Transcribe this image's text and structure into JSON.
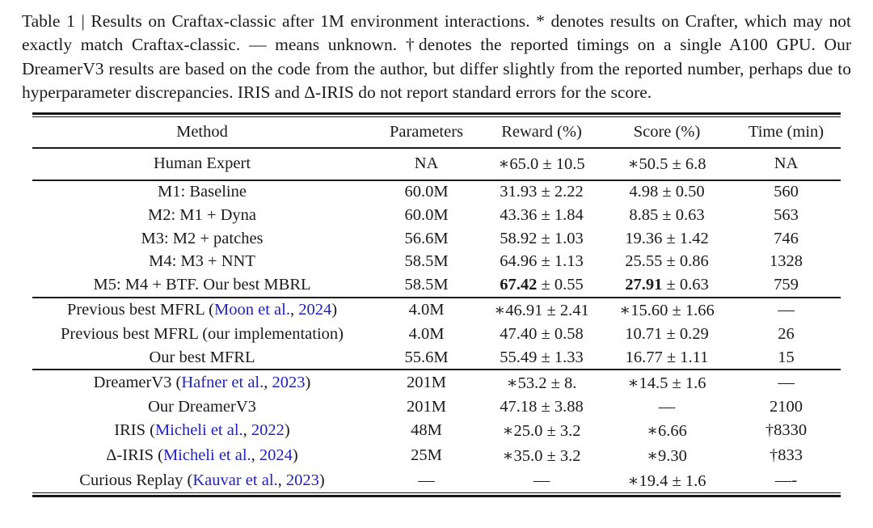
{
  "caption": {
    "label": "Table 1",
    "text": "Table 1 | Results on Craftax-classic after 1M environment interactions. * denotes results on Crafter, which may not exactly match Craftax-classic. — means unknown. †denotes the reported timings on a single A100 GPU. Our DreamerV3 results are based on the code from the author, but differ slightly from the reported number, perhaps due to hyperparameter discrepancies. IRIS and Δ-IRIS do not report standard errors for the score."
  },
  "colors": {
    "text": "#1b1b1b",
    "citation_link": "#2222bd",
    "rule": "#161616",
    "background": "#ffffff"
  },
  "table": {
    "headers": [
      "Method",
      "Parameters",
      "Reward (%)",
      "Score (%)",
      "Time (min)"
    ],
    "column_keys": [
      "method",
      "parameters",
      "reward",
      "score",
      "time"
    ],
    "sections": [
      {
        "name": "human-expert",
        "rows": [
          {
            "cells": [
              [
                {
                  "t": "Human Expert"
                }
              ],
              [
                {
                  "t": "NA"
                }
              ],
              [
                {
                  "t": "∗65.0 ± 10.5"
                }
              ],
              [
                {
                  "t": "∗50.5 ± 6.8"
                }
              ],
              [
                {
                  "t": "NA"
                }
              ]
            ]
          }
        ]
      },
      {
        "name": "our-mbrl",
        "rows": [
          {
            "cells": [
              [
                {
                  "t": "M1: Baseline"
                }
              ],
              [
                {
                  "t": "60.0M"
                }
              ],
              [
                {
                  "t": "31.93 ± 2.22"
                }
              ],
              [
                {
                  "t": "4.98 ± 0.50"
                }
              ],
              [
                {
                  "t": "560"
                }
              ]
            ]
          },
          {
            "cells": [
              [
                {
                  "t": "M2: M1 + Dyna"
                }
              ],
              [
                {
                  "t": "60.0M"
                }
              ],
              [
                {
                  "t": "43.36 ± 1.84"
                }
              ],
              [
                {
                  "t": "8.85 ± 0.63"
                }
              ],
              [
                {
                  "t": "563"
                }
              ]
            ]
          },
          {
            "cells": [
              [
                {
                  "t": "M3: M2 + patches"
                }
              ],
              [
                {
                  "t": "56.6M"
                }
              ],
              [
                {
                  "t": "58.92 ± 1.03"
                }
              ],
              [
                {
                  "t": "19.36 ± 1.42"
                }
              ],
              [
                {
                  "t": "746"
                }
              ]
            ]
          },
          {
            "cells": [
              [
                {
                  "t": "M4: M3 + NNT"
                }
              ],
              [
                {
                  "t": "58.5M"
                }
              ],
              [
                {
                  "t": "64.96 ± 1.13"
                }
              ],
              [
                {
                  "t": "25.55 ± 0.86"
                }
              ],
              [
                {
                  "t": "1328"
                }
              ]
            ]
          },
          {
            "cells": [
              [
                {
                  "t": "M5: M4 + BTF. Our best MBRL"
                }
              ],
              [
                {
                  "t": "58.5M"
                }
              ],
              [
                {
                  "t": "67.42",
                  "c": "bold"
                },
                {
                  "t": " ± 0.55"
                }
              ],
              [
                {
                  "t": "27.91",
                  "c": "bold"
                },
                {
                  "t": " ± 0.63"
                }
              ],
              [
                {
                  "t": "759"
                }
              ]
            ]
          }
        ]
      },
      {
        "name": "mfrl",
        "rows": [
          {
            "cells": [
              [
                {
                  "t": "Previous best MFRL ("
                },
                {
                  "t": "Moon et al.",
                  "c": "cite"
                },
                {
                  "t": ", "
                },
                {
                  "t": "2024",
                  "c": "cite"
                },
                {
                  "t": ")"
                }
              ],
              [
                {
                  "t": "4.0M"
                }
              ],
              [
                {
                  "t": "∗46.91 ± 2.41"
                }
              ],
              [
                {
                  "t": "∗15.60 ± 1.66"
                }
              ],
              [
                {
                  "t": "—"
                }
              ]
            ]
          },
          {
            "cells": [
              [
                {
                  "t": "Previous best MFRL (our implementation)"
                }
              ],
              [
                {
                  "t": "4.0M"
                }
              ],
              [
                {
                  "t": "47.40 ± 0.58"
                }
              ],
              [
                {
                  "t": "10.71 ± 0.29"
                }
              ],
              [
                {
                  "t": "26"
                }
              ]
            ]
          },
          {
            "cells": [
              [
                {
                  "t": "Our best MFRL"
                }
              ],
              [
                {
                  "t": "55.6M"
                }
              ],
              [
                {
                  "t": "55.49 ± 1.33"
                }
              ],
              [
                {
                  "t": "16.77 ± 1.11"
                }
              ],
              [
                {
                  "t": "15"
                }
              ]
            ]
          }
        ]
      },
      {
        "name": "baselines",
        "rows": [
          {
            "cells": [
              [
                {
                  "t": "DreamerV3 ("
                },
                {
                  "t": "Hafner et al.",
                  "c": "cite"
                },
                {
                  "t": ", "
                },
                {
                  "t": "2023",
                  "c": "cite"
                },
                {
                  "t": ")"
                }
              ],
              [
                {
                  "t": "201M"
                }
              ],
              [
                {
                  "t": "∗53.2 ± 8."
                }
              ],
              [
                {
                  "t": "∗14.5 ± 1.6"
                }
              ],
              [
                {
                  "t": "—"
                }
              ]
            ]
          },
          {
            "cells": [
              [
                {
                  "t": "Our DreamerV3"
                }
              ],
              [
                {
                  "t": "201M"
                }
              ],
              [
                {
                  "t": "47.18 ± 3.88"
                }
              ],
              [
                {
                  "t": "—"
                }
              ],
              [
                {
                  "t": "2100"
                }
              ]
            ]
          },
          {
            "cells": [
              [
                {
                  "t": "IRIS ("
                },
                {
                  "t": "Micheli et al.",
                  "c": "cite"
                },
                {
                  "t": ", "
                },
                {
                  "t": "2022",
                  "c": "cite"
                },
                {
                  "t": ")"
                }
              ],
              [
                {
                  "t": "48M"
                }
              ],
              [
                {
                  "t": "∗25.0 ± 3.2"
                }
              ],
              [
                {
                  "t": "∗6.66"
                }
              ],
              [
                {
                  "t": "†8330"
                }
              ]
            ]
          },
          {
            "cells": [
              [
                {
                  "t": "Δ-IRIS ("
                },
                {
                  "t": "Micheli et al.",
                  "c": "cite"
                },
                {
                  "t": ", "
                },
                {
                  "t": "2024",
                  "c": "cite"
                },
                {
                  "t": ")"
                }
              ],
              [
                {
                  "t": "25M"
                }
              ],
              [
                {
                  "t": "∗35.0 ± 3.2"
                }
              ],
              [
                {
                  "t": "∗9.30"
                }
              ],
              [
                {
                  "t": "†833"
                }
              ]
            ]
          },
          {
            "cells": [
              [
                {
                  "t": "Curious Replay ("
                },
                {
                  "t": "Kauvar et al.",
                  "c": "cite"
                },
                {
                  "t": ", "
                },
                {
                  "t": "2023",
                  "c": "cite"
                },
                {
                  "t": ")"
                }
              ],
              [
                {
                  "t": "—"
                }
              ],
              [
                {
                  "t": "—"
                }
              ],
              [
                {
                  "t": "∗19.4 ± 1.6"
                }
              ],
              [
                {
                  "t": "—-"
                }
              ]
            ]
          }
        ]
      }
    ]
  }
}
